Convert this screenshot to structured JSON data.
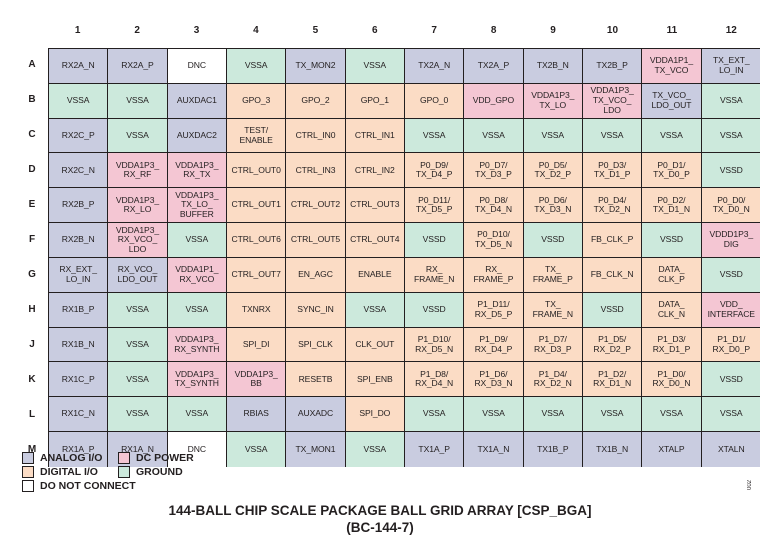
{
  "colors": {
    "analog": "#c9cce0",
    "digital": "#fbdcc5",
    "power": "#f4c6d3",
    "ground": "#cce9dc",
    "dnc": "#ffffff"
  },
  "columns": [
    "1",
    "2",
    "3",
    "4",
    "5",
    "6",
    "7",
    "8",
    "9",
    "10",
    "11",
    "12"
  ],
  "rows": [
    {
      "label": "A",
      "cells": [
        {
          "text": "RX2A_N",
          "type": "analog"
        },
        {
          "text": "RX2A_P",
          "type": "analog"
        },
        {
          "text": "DNC",
          "type": "dnc"
        },
        {
          "text": "VSSA",
          "type": "ground"
        },
        {
          "text": "TX_MON2",
          "type": "analog"
        },
        {
          "text": "VSSA",
          "type": "ground"
        },
        {
          "text": "TX2A_N",
          "type": "analog"
        },
        {
          "text": "TX2A_P",
          "type": "analog"
        },
        {
          "text": "TX2B_N",
          "type": "analog"
        },
        {
          "text": "TX2B_P",
          "type": "analog"
        },
        {
          "text": "VDDA1P1_\nTX_VCO",
          "type": "power"
        },
        {
          "text": "TX_EXT_\nLO_IN",
          "type": "analog"
        }
      ]
    },
    {
      "label": "B",
      "cells": [
        {
          "text": "VSSA",
          "type": "ground"
        },
        {
          "text": "VSSA",
          "type": "ground"
        },
        {
          "text": "AUXDAC1",
          "type": "analog"
        },
        {
          "text": "GPO_3",
          "type": "digital"
        },
        {
          "text": "GPO_2",
          "type": "digital"
        },
        {
          "text": "GPO_1",
          "type": "digital"
        },
        {
          "text": "GPO_0",
          "type": "digital"
        },
        {
          "text": "VDD_GPO",
          "type": "power"
        },
        {
          "text": "VDDA1P3_\nTX_LO",
          "type": "power"
        },
        {
          "text": "VDDA1P3_\nTX_VCO_\nLDO",
          "type": "power"
        },
        {
          "text": "TX_VCO_\nLDO_OUT",
          "type": "analog"
        },
        {
          "text": "VSSA",
          "type": "ground"
        }
      ]
    },
    {
      "label": "C",
      "cells": [
        {
          "text": "RX2C_P",
          "type": "analog"
        },
        {
          "text": "VSSA",
          "type": "ground"
        },
        {
          "text": "AUXDAC2",
          "type": "analog"
        },
        {
          "text": "TEST/\nENABLE",
          "type": "digital"
        },
        {
          "text": "CTRL_IN0",
          "type": "digital"
        },
        {
          "text": "CTRL_IN1",
          "type": "digital"
        },
        {
          "text": "VSSA",
          "type": "ground"
        },
        {
          "text": "VSSA",
          "type": "ground"
        },
        {
          "text": "VSSA",
          "type": "ground"
        },
        {
          "text": "VSSA",
          "type": "ground"
        },
        {
          "text": "VSSA",
          "type": "ground"
        },
        {
          "text": "VSSA",
          "type": "ground"
        }
      ]
    },
    {
      "label": "D",
      "cells": [
        {
          "text": "RX2C_N",
          "type": "analog"
        },
        {
          "text": "VDDA1P3_\nRX_RF",
          "type": "power"
        },
        {
          "text": "VDDA1P3_\nRX_TX",
          "type": "power"
        },
        {
          "text": "CTRL_OUT0",
          "type": "digital"
        },
        {
          "text": "CTRL_IN3",
          "type": "digital"
        },
        {
          "text": "CTRL_IN2",
          "type": "digital"
        },
        {
          "text": "P0_D9/\nTX_D4_P",
          "type": "digital"
        },
        {
          "text": "P0_D7/\nTX_D3_P",
          "type": "digital"
        },
        {
          "text": "P0_D5/\nTX_D2_P",
          "type": "digital"
        },
        {
          "text": "P0_D3/\nTX_D1_P",
          "type": "digital"
        },
        {
          "text": "P0_D1/\nTX_D0_P",
          "type": "digital"
        },
        {
          "text": "VSSD",
          "type": "ground"
        }
      ]
    },
    {
      "label": "E",
      "cells": [
        {
          "text": "RX2B_P",
          "type": "analog"
        },
        {
          "text": "VDDA1P3_\nRX_LO",
          "type": "power"
        },
        {
          "text": "VDDA1P3_\nTX_LO_\nBUFFER",
          "type": "power"
        },
        {
          "text": "CTRL_OUT1",
          "type": "digital"
        },
        {
          "text": "CTRL_OUT2",
          "type": "digital"
        },
        {
          "text": "CTRL_OUT3",
          "type": "digital"
        },
        {
          "text": "P0_D11/\nTX_D5_P",
          "type": "digital"
        },
        {
          "text": "P0_D8/\nTX_D4_N",
          "type": "digital"
        },
        {
          "text": "P0_D6/\nTX_D3_N",
          "type": "digital"
        },
        {
          "text": "P0_D4/\nTX_D2_N",
          "type": "digital"
        },
        {
          "text": "P0_D2/\nTX_D1_N",
          "type": "digital"
        },
        {
          "text": "P0_D0/\nTX_D0_N",
          "type": "digital"
        }
      ]
    },
    {
      "label": "F",
      "cells": [
        {
          "text": "RX2B_N",
          "type": "analog"
        },
        {
          "text": "VDDA1P3_\nRX_VCO_\nLDO",
          "type": "power"
        },
        {
          "text": "VSSA",
          "type": "ground"
        },
        {
          "text": "CTRL_OUT6",
          "type": "digital"
        },
        {
          "text": "CTRL_OUT5",
          "type": "digital"
        },
        {
          "text": "CTRL_OUT4",
          "type": "digital"
        },
        {
          "text": "VSSD",
          "type": "ground"
        },
        {
          "text": "P0_D10/\nTX_D5_N",
          "type": "digital"
        },
        {
          "text": "VSSD",
          "type": "ground"
        },
        {
          "text": "FB_CLK_P",
          "type": "digital"
        },
        {
          "text": "VSSD",
          "type": "ground"
        },
        {
          "text": "VDDD1P3_\nDIG",
          "type": "power"
        }
      ]
    },
    {
      "label": "G",
      "cells": [
        {
          "text": "RX_EXT_\nLO_IN",
          "type": "analog"
        },
        {
          "text": "RX_VCO_\nLDO_OUT",
          "type": "analog"
        },
        {
          "text": "VDDA1P1_\nRX_VCO",
          "type": "power"
        },
        {
          "text": "CTRL_OUT7",
          "type": "digital"
        },
        {
          "text": "EN_AGC",
          "type": "digital"
        },
        {
          "text": "ENABLE",
          "type": "digital"
        },
        {
          "text": "RX_\nFRAME_N",
          "type": "digital"
        },
        {
          "text": "RX_\nFRAME_P",
          "type": "digital"
        },
        {
          "text": "TX_\nFRAME_P",
          "type": "digital"
        },
        {
          "text": "FB_CLK_N",
          "type": "digital"
        },
        {
          "text": "DATA_\nCLK_P",
          "type": "digital"
        },
        {
          "text": "VSSD",
          "type": "ground"
        }
      ]
    },
    {
      "label": "H",
      "cells": [
        {
          "text": "RX1B_P",
          "type": "analog"
        },
        {
          "text": "VSSA",
          "type": "ground"
        },
        {
          "text": "VSSA",
          "type": "ground"
        },
        {
          "text": "TXNRX",
          "type": "digital"
        },
        {
          "text": "SYNC_IN",
          "type": "digital"
        },
        {
          "text": "VSSA",
          "type": "ground"
        },
        {
          "text": "VSSD",
          "type": "ground"
        },
        {
          "text": "P1_D11/\nRX_D5_P",
          "type": "digital"
        },
        {
          "text": "TX_\nFRAME_N",
          "type": "digital"
        },
        {
          "text": "VSSD",
          "type": "ground"
        },
        {
          "text": "DATA_\nCLK_N",
          "type": "digital"
        },
        {
          "text": "VDD_\nINTERFACE",
          "type": "power"
        }
      ]
    },
    {
      "label": "J",
      "cells": [
        {
          "text": "RX1B_N",
          "type": "analog"
        },
        {
          "text": "VSSA",
          "type": "ground"
        },
        {
          "text": "VDDA1P3_\nRX_SYNTH",
          "type": "power"
        },
        {
          "text": "SPI_DI",
          "type": "digital"
        },
        {
          "text": "SPI_CLK",
          "type": "digital"
        },
        {
          "text": "CLK_OUT",
          "type": "digital"
        },
        {
          "text": "P1_D10/\nRX_D5_N",
          "type": "digital"
        },
        {
          "text": "P1_D9/\nRX_D4_P",
          "type": "digital"
        },
        {
          "text": "P1_D7/\nRX_D3_P",
          "type": "digital"
        },
        {
          "text": "P1_D5/\nRX_D2_P",
          "type": "digital"
        },
        {
          "text": "P1_D3/\nRX_D1_P",
          "type": "digital"
        },
        {
          "text": "P1_D1/\nRX_D0_P",
          "type": "digital"
        }
      ]
    },
    {
      "label": "K",
      "cells": [
        {
          "text": "RX1C_P",
          "type": "analog"
        },
        {
          "text": "VSSA",
          "type": "ground"
        },
        {
          "text": "VDDA1P3_\nTX_SYNTH",
          "type": "power"
        },
        {
          "text": "VDDA1P3_\nBB",
          "type": "power"
        },
        {
          "text": "RESETB",
          "type": "digital"
        },
        {
          "text": "SPI_ENB",
          "type": "digital"
        },
        {
          "text": "P1_D8/\nRX_D4_N",
          "type": "digital"
        },
        {
          "text": "P1_D6/\nRX_D3_N",
          "type": "digital"
        },
        {
          "text": "P1_D4/\nRX_D2_N",
          "type": "digital"
        },
        {
          "text": "P1_D2/\nRX_D1_N",
          "type": "digital"
        },
        {
          "text": "P1_D0/\nRX_D0_N",
          "type": "digital"
        },
        {
          "text": "VSSD",
          "type": "ground"
        }
      ]
    },
    {
      "label": "L",
      "cells": [
        {
          "text": "RX1C_N",
          "type": "analog"
        },
        {
          "text": "VSSA",
          "type": "ground"
        },
        {
          "text": "VSSA",
          "type": "ground"
        },
        {
          "text": "RBIAS",
          "type": "analog"
        },
        {
          "text": "AUXADC",
          "type": "analog"
        },
        {
          "text": "SPI_DO",
          "type": "digital"
        },
        {
          "text": "VSSA",
          "type": "ground"
        },
        {
          "text": "VSSA",
          "type": "ground"
        },
        {
          "text": "VSSA",
          "type": "ground"
        },
        {
          "text": "VSSA",
          "type": "ground"
        },
        {
          "text": "VSSA",
          "type": "ground"
        },
        {
          "text": "VSSA",
          "type": "ground"
        }
      ]
    },
    {
      "label": "M",
      "cells": [
        {
          "text": "RX1A_P",
          "type": "analog"
        },
        {
          "text": "RX1A_N",
          "type": "analog"
        },
        {
          "text": "DNC",
          "type": "dnc"
        },
        {
          "text": "VSSA",
          "type": "ground"
        },
        {
          "text": "TX_MON1",
          "type": "analog"
        },
        {
          "text": "VSSA",
          "type": "ground"
        },
        {
          "text": "TX1A_P",
          "type": "analog"
        },
        {
          "text": "TX1A_N",
          "type": "analog"
        },
        {
          "text": "TX1B_P",
          "type": "analog"
        },
        {
          "text": "TX1B_N",
          "type": "analog"
        },
        {
          "text": "XTALP",
          "type": "analog"
        },
        {
          "text": "XTALN",
          "type": "analog"
        }
      ]
    }
  ],
  "legend": {
    "analog": "ANALOG I/O",
    "power": "DC POWER",
    "digital": "DIGITAL I/O",
    "ground": "GROUND",
    "dnc": "DO NOT CONNECT"
  },
  "title_line1": "144-BALL CHIP SCALE PACKAGE BALL GRID ARRAY [CSP_BGA]",
  "title_line2": "(BC-144-7)",
  "figure_code": "002"
}
